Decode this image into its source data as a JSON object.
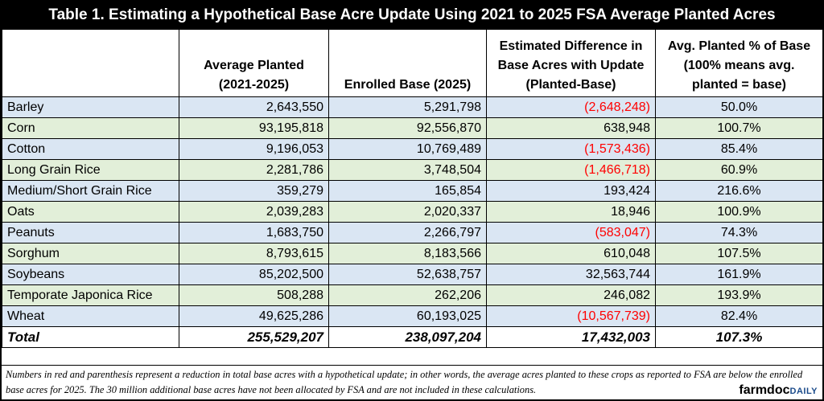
{
  "title": "Table 1. Estimating a Hypothetical Base Acre Update Using 2021 to 2025 FSA Average Planted Acres",
  "headers": [
    {
      "lines": [
        ""
      ]
    },
    {
      "lines": [
        "Average Planted",
        "(2021-2025)"
      ]
    },
    {
      "lines": [
        "Enrolled Base (2025)"
      ]
    },
    {
      "lines": [
        "Estimated Difference in",
        "Base Acres with Update",
        "(Planted-Base)"
      ]
    },
    {
      "lines": [
        "Avg. Planted % of Base",
        "(100% means avg.",
        "planted = base)"
      ]
    }
  ],
  "rows": [
    {
      "crop": "Barley",
      "avg_planted": "2,643,550",
      "enrolled_base": "5,291,798",
      "difference": "(2,648,248)",
      "negative": true,
      "pct": "50.0%",
      "shade": "blue"
    },
    {
      "crop": "Corn",
      "avg_planted": "93,195,818",
      "enrolled_base": "92,556,870",
      "difference": "638,948",
      "negative": false,
      "pct": "100.7%",
      "shade": "green"
    },
    {
      "crop": "Cotton",
      "avg_planted": "9,196,053",
      "enrolled_base": "10,769,489",
      "difference": "(1,573,436)",
      "negative": true,
      "pct": "85.4%",
      "shade": "blue"
    },
    {
      "crop": "Long Grain Rice",
      "avg_planted": "2,281,786",
      "enrolled_base": "3,748,504",
      "difference": "(1,466,718)",
      "negative": true,
      "pct": "60.9%",
      "shade": "green"
    },
    {
      "crop": "Medium/Short Grain Rice",
      "avg_planted": "359,279",
      "enrolled_base": "165,854",
      "difference": "193,424",
      "negative": false,
      "pct": "216.6%",
      "shade": "blue"
    },
    {
      "crop": "Oats",
      "avg_planted": "2,039,283",
      "enrolled_base": "2,020,337",
      "difference": "18,946",
      "negative": false,
      "pct": "100.9%",
      "shade": "green"
    },
    {
      "crop": "Peanuts",
      "avg_planted": "1,683,750",
      "enrolled_base": "2,266,797",
      "difference": "(583,047)",
      "negative": true,
      "pct": "74.3%",
      "shade": "blue"
    },
    {
      "crop": "Sorghum",
      "avg_planted": "8,793,615",
      "enrolled_base": "8,183,566",
      "difference": "610,048",
      "negative": false,
      "pct": "107.5%",
      "shade": "green"
    },
    {
      "crop": "Soybeans",
      "avg_planted": "85,202,500",
      "enrolled_base": "52,638,757",
      "difference": "32,563,744",
      "negative": false,
      "pct": "161.9%",
      "shade": "blue"
    },
    {
      "crop": "Temporate Japonica Rice",
      "avg_planted": "508,288",
      "enrolled_base": "262,206",
      "difference": "246,082",
      "negative": false,
      "pct": "193.9%",
      "shade": "green"
    },
    {
      "crop": "Wheat",
      "avg_planted": "49,625,286",
      "enrolled_base": "60,193,025",
      "difference": "(10,567,739)",
      "negative": true,
      "pct": "82.4%",
      "shade": "blue"
    }
  ],
  "total": {
    "crop": "Total",
    "avg_planted": "255,529,207",
    "enrolled_base": "238,097,204",
    "difference": "17,432,003",
    "pct": "107.3%"
  },
  "footnote": "Numbers in red and parenthesis represent a reduction in total base acres with a hypothetical update; in other words, the average acres planted to these crops as reported to FSA are below the enrolled base acres for 2025. The 30 million additional base acres have not been allocated by FSA and are not included in these calculations.",
  "brand": {
    "part1": "farmdoc",
    "part2": "DAILY"
  },
  "colors": {
    "negative": "#ff0000",
    "blue_row": "#dae6f3",
    "green_row": "#e2efd9"
  }
}
